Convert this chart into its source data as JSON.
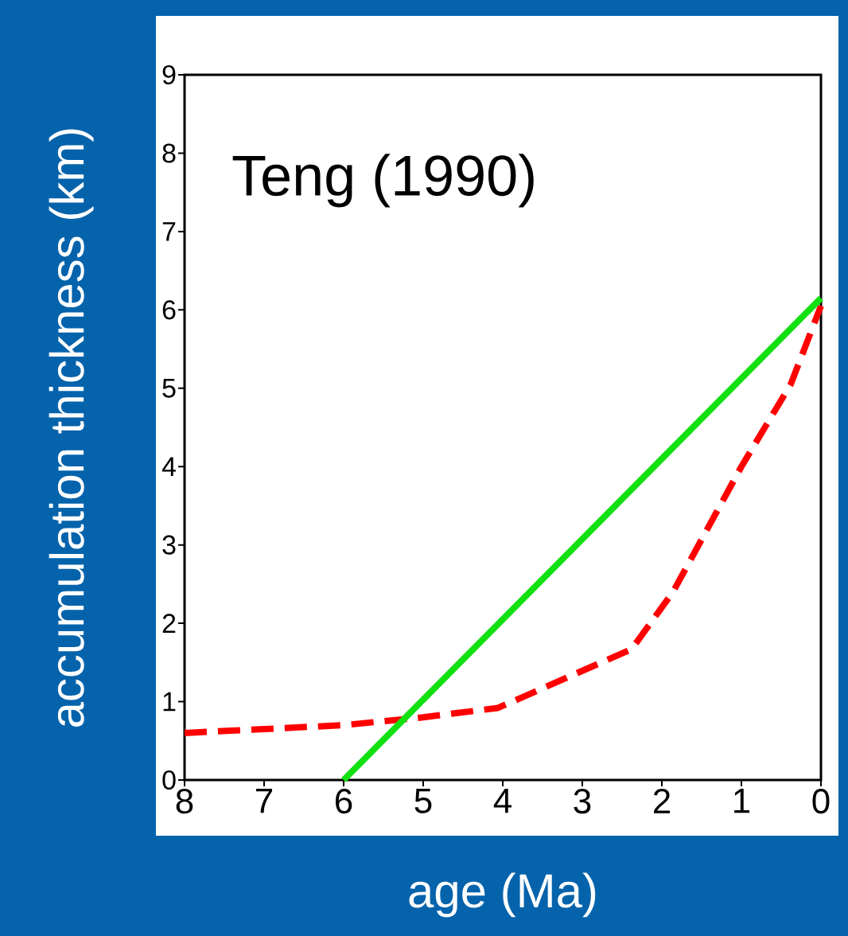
{
  "chart_data": {
    "type": "line",
    "xlabel": "age (Ma)",
    "ylabel": "accumulation thickness (km)",
    "annotations": [
      "Teng (1990)"
    ],
    "series": [
      {
        "color": "#ff0000",
        "line_style": "dashed",
        "x": [
          8,
          6,
          5,
          4.06,
          2.38,
          1.86,
          1.0,
          0.38,
          0
        ],
        "values": [
          0.6,
          0.7,
          0.8,
          0.92,
          1.67,
          2.4,
          4.0,
          5.05,
          6.05
        ]
      },
      {
        "color": "#11e011",
        "line_style": "solid",
        "x": [
          6,
          0
        ],
        "values": [
          0,
          6.15
        ]
      }
    ],
    "xlim": [
      8,
      0
    ],
    "ylim": [
      0,
      9
    ],
    "xticks": [
      8,
      7,
      6,
      5,
      4,
      3,
      2,
      1,
      0
    ],
    "yticks": [
      0,
      1,
      2,
      3,
      4,
      5,
      6,
      7,
      8,
      9
    ],
    "grid": false,
    "marker": "none"
  }
}
